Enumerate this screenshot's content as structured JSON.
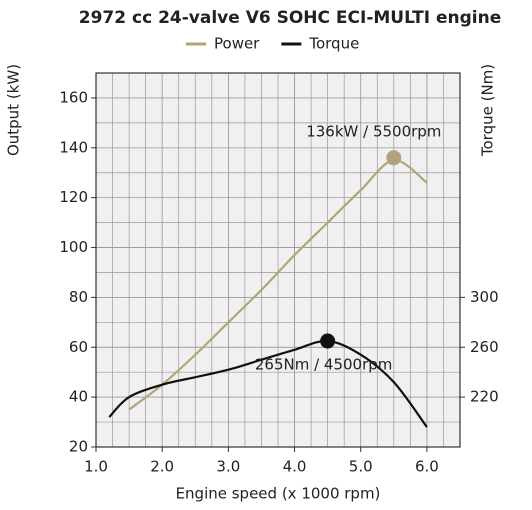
{
  "chart_data": {
    "type": "line",
    "title": "2972 cc 24-valve V6 SOHC ECI-MULTI engine",
    "xlabel": "Engine speed (x 1000 rpm)",
    "ylabel": "Output (kW)",
    "y2label": "Torque (Nm)",
    "xlim": [
      1.0,
      6.5
    ],
    "xticks": [
      {
        "value": 1,
        "label": "1.0"
      },
      {
        "value": 2,
        "label": "2.0"
      },
      {
        "value": 3,
        "label": "3.0"
      },
      {
        "value": 4,
        "label": "4.0"
      },
      {
        "value": 5,
        "label": "5.0"
      },
      {
        "value": 6,
        "label": "6.0"
      }
    ],
    "ylim": [
      20,
      170
    ],
    "yticks": [
      20,
      40,
      60,
      80,
      100,
      120,
      140,
      160
    ],
    "y2lim": [
      180,
      480
    ],
    "y2ticks": [
      220,
      260,
      300
    ],
    "grid": true,
    "legend": "top",
    "series": [
      {
        "name": "Power",
        "color": "#b3a37a",
        "axis": "y",
        "x": [
          1.5,
          2.0,
          2.5,
          3.0,
          3.5,
          4.0,
          4.5,
          5.0,
          5.5,
          6.0
        ],
        "values": [
          35,
          45,
          57,
          70,
          83,
          97,
          110,
          123,
          135,
          126
        ]
      },
      {
        "name": "Torque",
        "color": "#111111",
        "axis": "y2",
        "x": [
          1.2,
          1.5,
          2.0,
          2.5,
          3.0,
          3.5,
          4.0,
          4.5,
          5.0,
          5.5,
          6.0
        ],
        "values": [
          204,
          220,
          230,
          236,
          242,
          250,
          258,
          265,
          254,
          232,
          196
        ]
      }
    ],
    "annotations": [
      {
        "text": "136kW / 5500rpm",
        "x": 5.5,
        "y": 136,
        "axis": "y",
        "color": "#b3a37a"
      },
      {
        "text": "265Nm / 4500rpm",
        "x": 4.5,
        "y": 265,
        "axis": "y2",
        "color": "#111111"
      }
    ]
  }
}
